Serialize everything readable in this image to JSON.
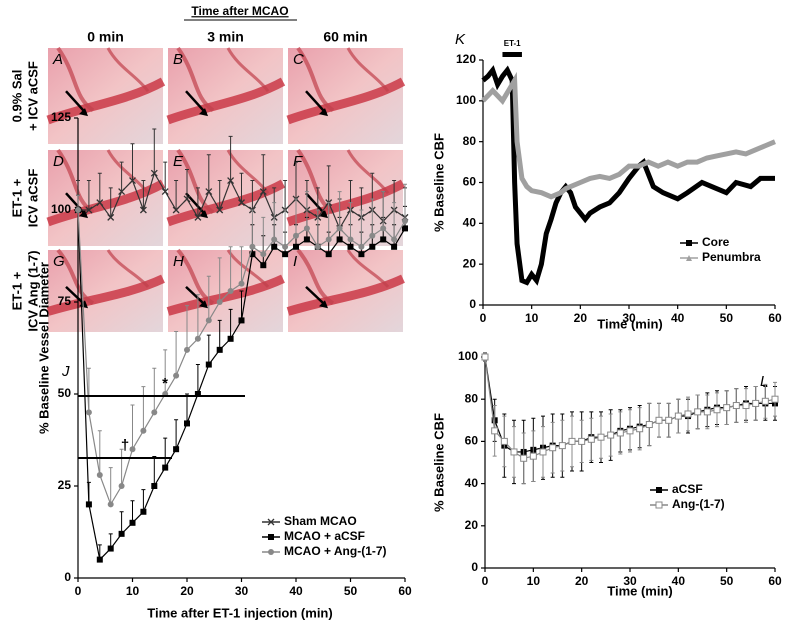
{
  "figure": {
    "title": "Time after MCAO",
    "columns": [
      "0 min",
      "3 min",
      "60 min"
    ],
    "rows": [
      [
        "0.9% Sal",
        "+ ICV aCSF"
      ],
      [
        "ET-1 +",
        "ICV aCSF"
      ],
      [
        "ET-1 +",
        "ICV Ang (1-7)"
      ]
    ],
    "panels": [
      "A",
      "B",
      "C",
      "D",
      "E",
      "F",
      "G",
      "H",
      "I"
    ]
  },
  "chart_data": [
    {
      "type": "line",
      "panel": "J",
      "y_label": "% Baseline Vessel Diameter",
      "x_label": "Time after ET-1 injection (min)",
      "annotations": [
        "*",
        "†"
      ],
      "xlim": [
        0,
        60
      ],
      "xticks": [
        0,
        10,
        20,
        30,
        40,
        50,
        60
      ],
      "ylim": [
        0,
        125
      ],
      "yticks": [
        0,
        25,
        50,
        75,
        100,
        125
      ],
      "error_bars": "up",
      "x": [
        0,
        2,
        4,
        6,
        8,
        10,
        12,
        14,
        16,
        18,
        20,
        22,
        24,
        26,
        28,
        30,
        32,
        34,
        36,
        38,
        40,
        42,
        44,
        46,
        48,
        50,
        52,
        54,
        56,
        58,
        60
      ],
      "series": [
        {
          "name": "Sham MCAO",
          "color": "#333333",
          "marker": "x",
          "values": [
            100,
            100,
            102,
            98,
            105,
            108,
            100,
            110,
            105,
            100,
            103,
            98,
            105,
            100,
            108,
            102,
            100,
            105,
            98,
            100,
            103,
            100,
            98,
            102,
            95,
            100,
            98,
            100,
            97,
            100,
            98
          ],
          "errors": [
            8,
            8,
            8,
            8,
            8,
            10,
            8,
            12,
            8,
            8,
            8,
            8,
            10,
            8,
            12,
            8,
            8,
            10,
            8,
            8,
            10,
            8,
            8,
            10,
            8,
            8,
            8,
            10,
            8,
            8,
            8
          ]
        },
        {
          "name": "MCAO + aCSF",
          "color": "#000000",
          "marker": "square",
          "values": [
            100,
            20,
            5,
            8,
            12,
            15,
            18,
            25,
            30,
            35,
            42,
            50,
            58,
            62,
            65,
            70,
            88,
            85,
            90,
            88,
            90,
            92,
            90,
            88,
            92,
            90,
            88,
            90,
            92,
            90,
            95
          ],
          "errors": [
            4,
            6,
            4,
            4,
            6,
            6,
            6,
            8,
            8,
            8,
            8,
            8,
            8,
            8,
            8,
            8,
            8,
            8,
            6,
            6,
            6,
            6,
            6,
            6,
            6,
            6,
            6,
            6,
            6,
            6,
            6
          ]
        },
        {
          "name": "MCAO + Ang-(1-7)",
          "color": "#888888",
          "marker": "circle",
          "values": [
            100,
            45,
            28,
            20,
            25,
            35,
            40,
            45,
            50,
            55,
            62,
            65,
            70,
            75,
            78,
            80,
            90,
            88,
            92,
            90,
            93,
            95,
            90,
            92,
            95,
            92,
            90,
            93,
            95,
            92,
            97
          ],
          "errors": [
            4,
            12,
            12,
            10,
            10,
            12,
            12,
            12,
            12,
            12,
            12,
            12,
            12,
            12,
            12,
            10,
            10,
            10,
            10,
            10,
            10,
            10,
            10,
            10,
            10,
            10,
            10,
            10,
            10,
            10,
            10
          ]
        }
      ]
    },
    {
      "type": "line",
      "panel": "K",
      "y_label": "% Baseline CBF",
      "x_label": "Time (min)",
      "annotations": [
        "ET-1"
      ],
      "xlim": [
        0,
        60
      ],
      "xticks": [
        0,
        10,
        20,
        30,
        40,
        50,
        60
      ],
      "ylim": [
        0,
        120
      ],
      "yticks": [
        0,
        20,
        40,
        60,
        80,
        100,
        120
      ],
      "series": [
        {
          "name": "Core",
          "color": "#000000",
          "marker": "square",
          "x": [
            0,
            1,
            2,
            3,
            4,
            5,
            6,
            6.5,
            7,
            8,
            9,
            10,
            11,
            12,
            13,
            14,
            15,
            16,
            17,
            18,
            19,
            20,
            21,
            22,
            24,
            26,
            28,
            30,
            32,
            33,
            35,
            37,
            40,
            42,
            45,
            47,
            50,
            52,
            55,
            57,
            60
          ],
          "values": [
            110,
            112,
            115,
            108,
            112,
            115,
            110,
            60,
            30,
            12,
            11,
            15,
            12,
            20,
            35,
            42,
            50,
            55,
            58,
            55,
            48,
            45,
            42,
            45,
            48,
            50,
            55,
            62,
            68,
            70,
            58,
            55,
            52,
            55,
            60,
            58,
            55,
            60,
            58,
            62,
            62
          ]
        },
        {
          "name": "Penumbra",
          "color": "#a0a0a0",
          "marker": "triangle",
          "x": [
            0,
            2,
            4,
            6,
            6.5,
            7,
            8,
            9,
            10,
            12,
            14,
            16,
            17,
            18,
            20,
            22,
            24,
            26,
            28,
            30,
            32,
            34,
            36,
            38,
            40,
            42,
            44,
            46,
            48,
            50,
            52,
            54,
            56,
            58,
            60
          ],
          "values": [
            100,
            105,
            100,
            108,
            110,
            80,
            62,
            58,
            56,
            55,
            53,
            55,
            57,
            58,
            60,
            62,
            63,
            62,
            64,
            68,
            68,
            70,
            68,
            70,
            68,
            70,
            70,
            72,
            73,
            74,
            75,
            74,
            76,
            78,
            80
          ]
        }
      ]
    },
    {
      "type": "line",
      "panel": "L",
      "y_label": "% Baseline CBF",
      "x_label": "Time  (min)",
      "xlim": [
        0,
        60
      ],
      "xticks": [
        0,
        10,
        20,
        30,
        40,
        50,
        60
      ],
      "ylim": [
        0,
        100
      ],
      "yticks": [
        0,
        20,
        40,
        60,
        80,
        100
      ],
      "error_bars": "both",
      "x": [
        0,
        2,
        4,
        6,
        8,
        10,
        12,
        14,
        16,
        18,
        20,
        22,
        24,
        26,
        28,
        30,
        32,
        34,
        36,
        38,
        40,
        42,
        44,
        46,
        48,
        50,
        52,
        54,
        56,
        58,
        60
      ],
      "series": [
        {
          "name": "aCSF",
          "color": "#000000",
          "marker": "square",
          "values": [
            100,
            70,
            58,
            55,
            55,
            56,
            57,
            58,
            58,
            60,
            60,
            62,
            62,
            63,
            65,
            66,
            67,
            68,
            70,
            70,
            72,
            72,
            74,
            75,
            76,
            76,
            77,
            78,
            78,
            78,
            78
          ],
          "errors": [
            2,
            10,
            15,
            15,
            15,
            15,
            15,
            15,
            15,
            14,
            14,
            12,
            12,
            12,
            10,
            10,
            10,
            10,
            8,
            8,
            8,
            8,
            8,
            8,
            8,
            8,
            8,
            8,
            8,
            8,
            8
          ]
        },
        {
          "name": "Ang-(1-7)",
          "color": "#888888",
          "marker": "open-square",
          "values": [
            100,
            65,
            60,
            55,
            52,
            53,
            55,
            57,
            58,
            60,
            60,
            61,
            62,
            63,
            64,
            65,
            66,
            68,
            70,
            70,
            72,
            73,
            74,
            74,
            75,
            76,
            77,
            77,
            78,
            79,
            80
          ],
          "errors": [
            2,
            12,
            12,
            12,
            12,
            12,
            12,
            12,
            12,
            12,
            10,
            10,
            10,
            10,
            10,
            10,
            10,
            10,
            8,
            8,
            8,
            8,
            8,
            8,
            8,
            8,
            8,
            8,
            8,
            8,
            8
          ]
        }
      ]
    }
  ]
}
